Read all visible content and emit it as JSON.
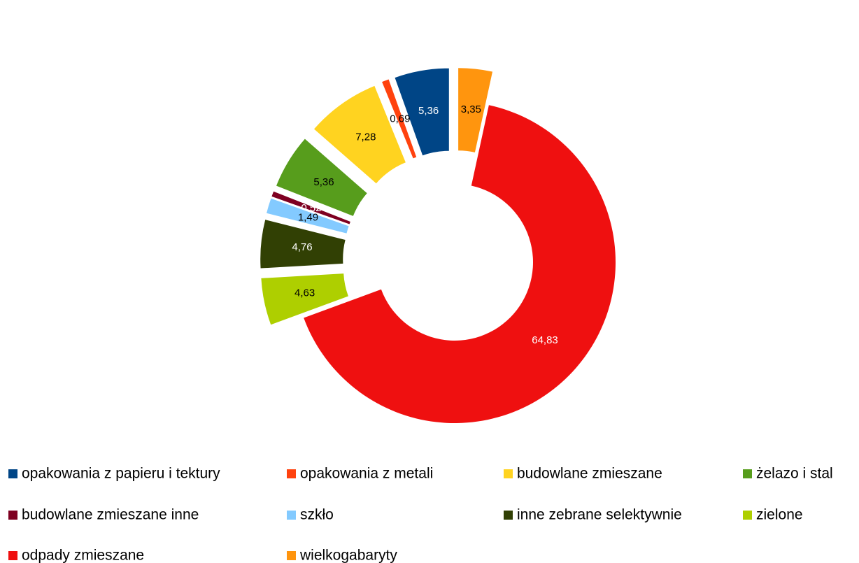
{
  "chart_data": {
    "type": "donut",
    "categories": [
      "opakowania z papieru i tektury",
      "opakowania z metali",
      "budowlane zmieszane",
      "żelazo i stal",
      "budowlane zmieszane inne",
      "szkło",
      "inne zebrane selektywnie",
      "zielone",
      "odpady zmieszane",
      "wielkogabaryty"
    ],
    "values": [
      5.36,
      0.69,
      7.28,
      5.36,
      0.52,
      1.49,
      4.76,
      4.63,
      64.83,
      3.35
    ],
    "value_labels": [
      "5,36",
      "0,69",
      "7,28",
      "5,36",
      "0,52",
      "1,49",
      "4,76",
      "4,63",
      "64,83",
      "3,35"
    ],
    "colors": [
      "#004586",
      "#ff420e",
      "#ffd320",
      "#579d1c",
      "#7e0021",
      "#83caff",
      "#314004",
      "#aecf00",
      "#ef1010",
      "#ff950e"
    ],
    "legend": "bottom"
  }
}
